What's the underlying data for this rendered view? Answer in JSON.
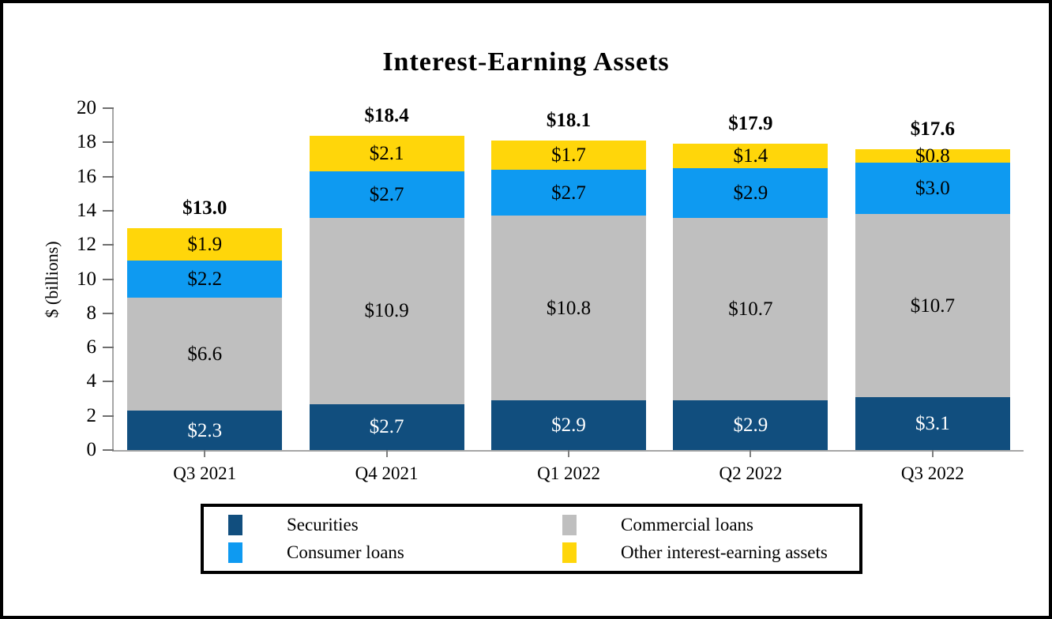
{
  "title": "Interest-Earning Assets",
  "chart_data": {
    "type": "bar",
    "stacked": true,
    "title": "Interest-Earning Assets",
    "xlabel": "",
    "ylabel": "$ (billions)",
    "ylim": [
      0,
      20
    ],
    "yticks": [
      0,
      2,
      4,
      6,
      8,
      10,
      12,
      14,
      16,
      18,
      20
    ],
    "grid": false,
    "legend_position": "bottom",
    "categories": [
      "Q3 2021",
      "Q4 2021",
      "Q1 2022",
      "Q2 2022",
      "Q3 2022"
    ],
    "series": [
      {
        "name": "Securities",
        "color": "#114E7E",
        "label_color": "#ffffff",
        "values": [
          2.3,
          2.7,
          2.9,
          2.9,
          3.1
        ],
        "labels": [
          "$2.3",
          "$2.7",
          "$2.9",
          "$2.9",
          "$3.1"
        ]
      },
      {
        "name": "Commercial loans",
        "color": "#BFBFBF",
        "label_color": "#000000",
        "values": [
          6.6,
          10.9,
          10.8,
          10.7,
          10.7
        ],
        "labels": [
          "$6.6",
          "$10.9",
          "$10.8",
          "$10.7",
          "$10.7"
        ]
      },
      {
        "name": "Consumer loans",
        "color": "#0E9AF1",
        "label_color": "#000000",
        "values": [
          2.2,
          2.7,
          2.7,
          2.9,
          3.0
        ],
        "labels": [
          "$2.2",
          "$2.7",
          "$2.7",
          "$2.9",
          "$3.0"
        ]
      },
      {
        "name": "Other interest-earning assets",
        "color": "#FFD60A",
        "label_color": "#000000",
        "values": [
          1.9,
          2.1,
          1.7,
          1.4,
          0.8
        ],
        "labels": [
          "$1.9",
          "$2.1",
          "$1.7",
          "$1.4",
          "$0.8"
        ]
      }
    ],
    "totals": [
      13.0,
      18.4,
      18.1,
      17.9,
      17.6
    ],
    "total_labels": [
      "$13.0",
      "$18.4",
      "$18.1",
      "$17.9",
      "$17.6"
    ]
  },
  "axis": {
    "line_color": "#a6a6a6",
    "tick_color": "#6e6e6e"
  },
  "legend": {
    "items": [
      {
        "label": "Securities",
        "color": "#114E7E"
      },
      {
        "label": "Consumer loans",
        "color": "#0E9AF1"
      },
      {
        "label": "Commercial loans",
        "color": "#BFBFBF"
      },
      {
        "label": "Other interest-earning assets",
        "color": "#FFD60A"
      }
    ]
  }
}
